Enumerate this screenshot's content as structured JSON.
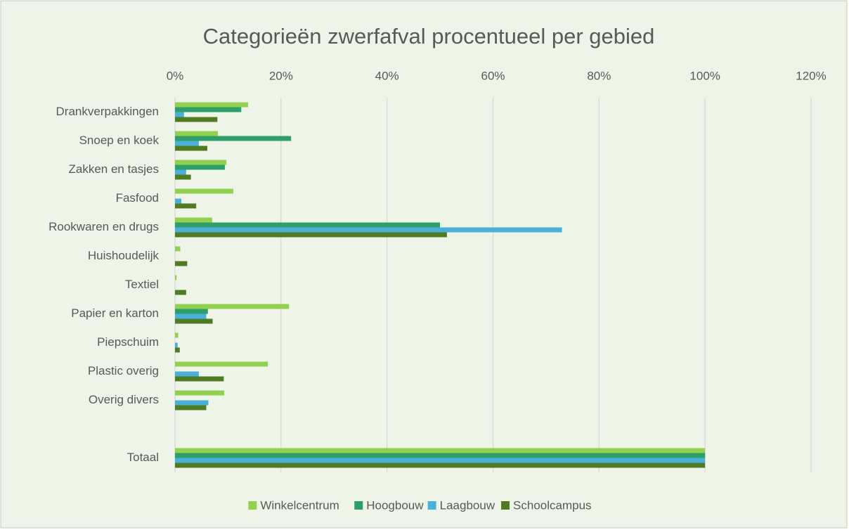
{
  "chart_data": {
    "type": "hbar",
    "title": "Categorieën zwerfafval procentueel per gebied",
    "categories": [
      "Drankverpakkingen",
      "Snoep en koek",
      "Zakken en tasjes",
      "Fasfood",
      "Rookwaren en drugs",
      "Huishoudelijk",
      "Textiel",
      "Papier en karton",
      "Piepschuim",
      "Plastic overig",
      "Overig divers",
      null,
      "Totaal"
    ],
    "series": [
      {
        "name": "Winkelcentrum",
        "color": "#92d050",
        "values": [
          13.8,
          8.1,
          9.7,
          11.0,
          7.0,
          1.0,
          0.3,
          21.5,
          0.6,
          17.5,
          9.3,
          null,
          100
        ]
      },
      {
        "name": "Hoogbouw",
        "color": "#2e9e6b",
        "values": [
          12.5,
          21.9,
          9.4,
          0,
          50.0,
          0,
          0,
          6.2,
          0,
          0,
          0,
          null,
          100
        ]
      },
      {
        "name": "Laagbouw",
        "color": "#4bb0d8",
        "values": [
          1.7,
          4.5,
          2.1,
          1.2,
          73.0,
          0,
          0,
          5.9,
          0.5,
          4.5,
          6.3,
          null,
          100
        ]
      },
      {
        "name": "Schoolcampus",
        "color": "#4f7b22",
        "values": [
          8.0,
          6.1,
          3.0,
          4.0,
          51.3,
          2.3,
          2.1,
          7.1,
          0.9,
          9.2,
          5.9,
          null,
          100
        ]
      }
    ],
    "xlim": [
      0,
      120
    ],
    "xticks": [
      {
        "value": 0,
        "label": "0%"
      },
      {
        "value": 20,
        "label": "20%"
      },
      {
        "value": 40,
        "label": "40%"
      },
      {
        "value": 60,
        "label": "60%"
      },
      {
        "value": 80,
        "label": "80%"
      },
      {
        "value": 100,
        "label": "100%"
      },
      {
        "value": 120,
        "label": "120%"
      }
    ],
    "grid": true,
    "legend": "bottom"
  }
}
